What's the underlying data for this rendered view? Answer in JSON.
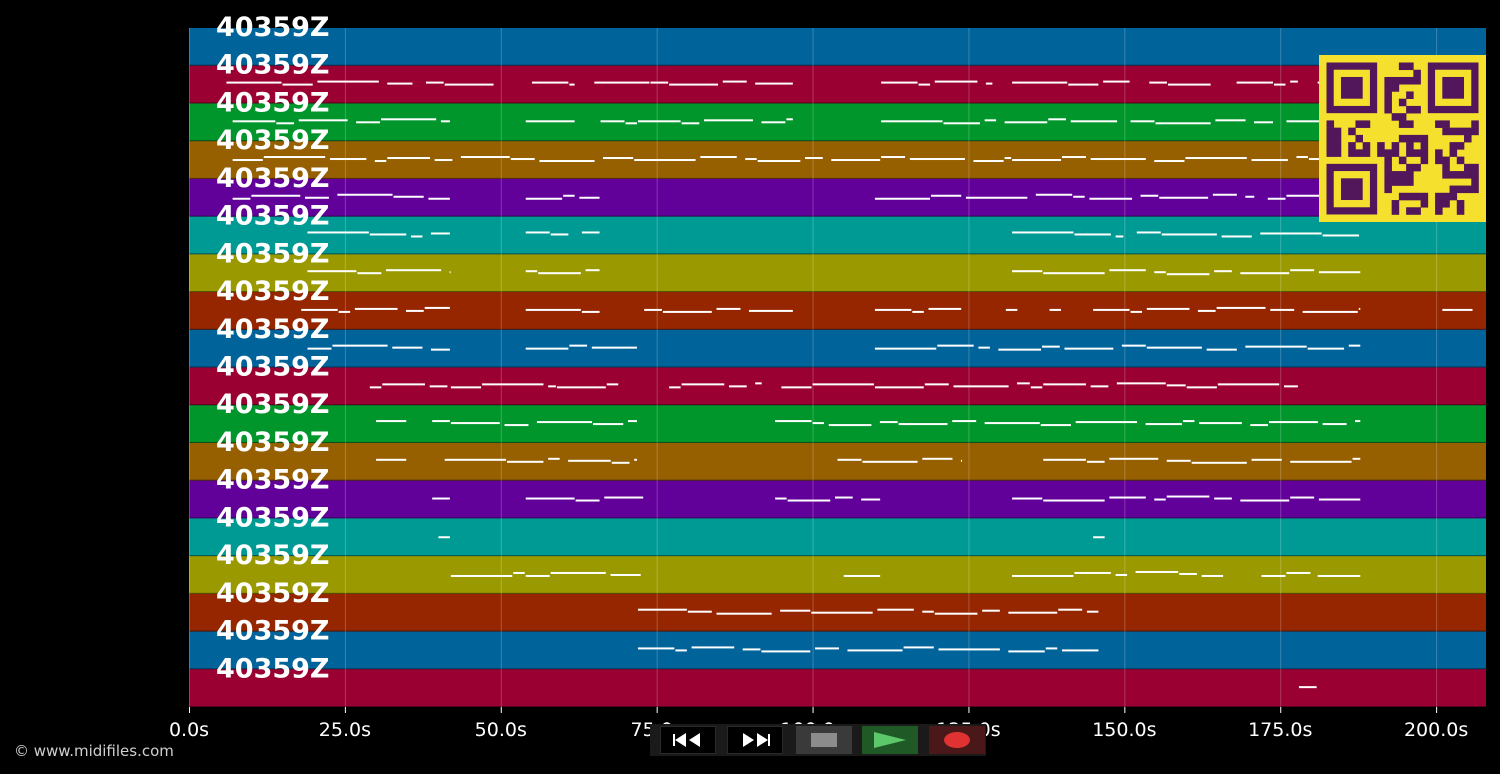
{
  "track_label": "40359Z",
  "track_count": 18,
  "track_colors": [
    "#00639a",
    "#9a0032",
    "#00962c",
    "#965f00",
    "#62009a",
    "#009a94",
    "#9a9a00",
    "#962600"
  ],
  "time_axis": {
    "min": 0,
    "max": 208,
    "ticks": [
      0,
      25,
      50,
      75,
      100,
      125,
      150,
      175,
      200
    ],
    "tick_labels": [
      "0.0s",
      "25.0s",
      "50.0s",
      "75.0s",
      "100.0s",
      "125.0s",
      "150.0s",
      "175.0s",
      "200.0s"
    ]
  },
  "copyright": "© www.midifiles.com",
  "controls": {
    "rewind": "rewind-icon",
    "forward": "fast-forward-icon",
    "stop": "stop-icon",
    "play": "play-icon",
    "record": "record-icon"
  },
  "note_colors": {
    "note": "#ffffff"
  },
  "notes": [
    [],
    [
      [
        6,
        36
      ],
      [
        38,
        49
      ],
      [
        55,
        62
      ],
      [
        65,
        74
      ],
      [
        74,
        97
      ],
      [
        111,
        129
      ],
      [
        132,
        151
      ],
      [
        154,
        164
      ],
      [
        168,
        178
      ],
      [
        181,
        185
      ]
    ],
    [
      [
        7,
        42
      ],
      [
        54,
        62
      ],
      [
        66,
        72
      ],
      [
        72,
        97
      ],
      [
        111,
        149
      ],
      [
        151,
        174
      ],
      [
        176,
        189
      ]
    ],
    [
      [
        7,
        132
      ],
      [
        132,
        188
      ]
    ],
    [
      [
        7,
        42
      ],
      [
        54,
        66
      ],
      [
        110,
        171
      ],
      [
        173,
        186
      ]
    ],
    [
      [
        19,
        42
      ],
      [
        54,
        61
      ],
      [
        63,
        66
      ],
      [
        132,
        150
      ],
      [
        152,
        188
      ]
    ],
    [
      [
        19,
        42
      ],
      [
        54,
        66
      ],
      [
        132,
        188
      ]
    ],
    [
      [
        18,
        42
      ],
      [
        54,
        66
      ],
      [
        73,
        97
      ],
      [
        110,
        124
      ],
      [
        131,
        133
      ],
      [
        138,
        140
      ],
      [
        145,
        188
      ],
      [
        201,
        206
      ]
    ],
    [
      [
        19,
        42
      ],
      [
        54,
        72
      ],
      [
        110,
        188
      ]
    ],
    [
      [
        29,
        42
      ],
      [
        42,
        59
      ],
      [
        59,
        69
      ],
      [
        77,
        92
      ],
      [
        95,
        110
      ],
      [
        110,
        135
      ],
      [
        135,
        160
      ],
      [
        160,
        178
      ]
    ],
    [
      [
        30,
        35
      ],
      [
        39,
        72
      ],
      [
        94,
        188
      ]
    ],
    [
      [
        30,
        35
      ],
      [
        41,
        72
      ],
      [
        104,
        124
      ],
      [
        137,
        188
      ]
    ],
    [
      [
        39,
        42
      ],
      [
        54,
        73
      ],
      [
        94,
        111
      ],
      [
        132,
        188
      ]
    ],
    [
      [
        40,
        42
      ],
      [
        145,
        147
      ]
    ],
    [
      [
        42,
        54
      ],
      [
        54,
        73
      ],
      [
        105,
        111
      ],
      [
        132,
        166
      ],
      [
        172,
        180
      ],
      [
        181,
        188
      ]
    ],
    [
      [
        72,
        146
      ]
    ],
    [
      [
        72,
        146
      ]
    ],
    [
      [
        178,
        181
      ]
    ]
  ]
}
